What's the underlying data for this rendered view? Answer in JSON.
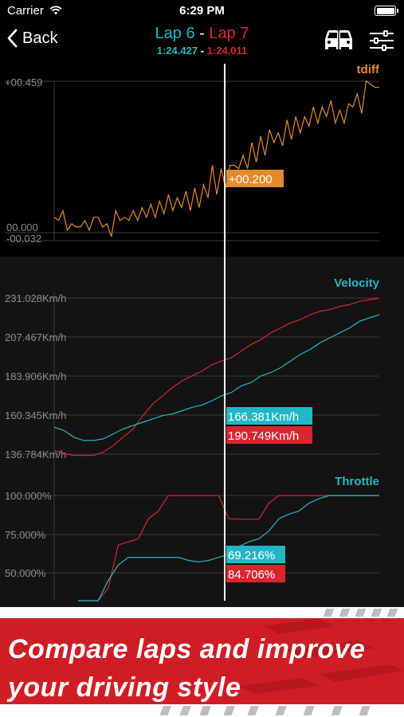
{
  "status": {
    "carrier": "Carrier",
    "time": "6:29 PM"
  },
  "nav": {
    "back_label": "Back",
    "lap_a": "Lap 6",
    "separator": "-",
    "lap_b": "Lap 7",
    "time_a": "1:24.427",
    "time_b": "1:24.011"
  },
  "colors": {
    "lap_a": "#22b7c7",
    "lap_b": "#d8262f",
    "tdiff": "#e58a2a",
    "grid": "#3a3a3a"
  },
  "tdiff_chart": {
    "title": "tdiff",
    "ticks": [
      "+00.459",
      "00.000",
      "-00.032"
    ],
    "ymin": -0.032,
    "ymax": 0.459,
    "cursor_label": "+00.200",
    "values": [
      0.04,
      0.03,
      0.06,
      0.0,
      0.02,
      0.01,
      0.01,
      0.03,
      0.0,
      0.04,
      0.04,
      0.01,
      0.02,
      -0.02,
      0.06,
      0.03,
      0.04,
      0.03,
      0.06,
      0.03,
      0.07,
      0.04,
      0.08,
      0.04,
      0.09,
      0.05,
      0.11,
      0.06,
      0.1,
      0.07,
      0.12,
      0.06,
      0.13,
      0.07,
      0.14,
      0.1,
      0.2,
      0.11,
      0.19,
      0.13,
      0.2,
      0.2,
      0.19,
      0.23,
      0.19,
      0.27,
      0.21,
      0.29,
      0.23,
      0.31,
      0.27,
      0.3,
      0.26,
      0.34,
      0.28,
      0.35,
      0.3,
      0.35,
      0.32,
      0.38,
      0.33,
      0.38,
      0.35,
      0.4,
      0.33,
      0.37,
      0.33,
      0.39,
      0.38,
      0.42,
      0.36,
      0.46,
      0.45,
      0.44,
      0.44
    ]
  },
  "velocity_chart": {
    "title": "Velocity",
    "ticks": [
      "231.028Km/h",
      "207.467Km/h",
      "183.906Km/h",
      "160.345Km/h",
      "136.784Km/h"
    ],
    "ymin": 136.784,
    "ymax": 231.028,
    "cursor_label_a": "166.381Km/h",
    "cursor_label_b": "190.749Km/h",
    "lap_a": [
      153,
      151,
      147,
      145,
      145,
      146,
      149,
      152,
      154,
      156,
      158,
      160,
      161,
      163,
      165,
      166.4,
      169,
      172,
      174,
      178,
      180,
      184,
      186,
      189,
      193,
      197,
      200,
      204,
      207,
      210,
      213,
      217,
      219,
      221
    ],
    "lap_b": [
      139,
      137,
      136,
      136,
      136,
      138,
      142,
      147,
      152,
      160,
      167,
      172,
      177,
      181,
      184,
      187,
      190.7,
      193,
      195,
      199,
      203,
      206,
      210,
      213,
      216,
      218,
      221,
      223,
      224,
      226,
      227,
      229,
      230,
      231
    ]
  },
  "throttle_chart": {
    "title": "Throttle",
    "ticks": [
      "100.000%",
      "75.000%",
      "50.000%"
    ],
    "ymin": 40,
    "ymax": 100,
    "cursor_label_a": "69.216%",
    "cursor_label_b": "84.706%",
    "lap_a": [
      0,
      10,
      25,
      45,
      55,
      60,
      60,
      60,
      60,
      60,
      60,
      58,
      57,
      58,
      60,
      62,
      67,
      70,
      72,
      77,
      85,
      88,
      90,
      95,
      98,
      100,
      100,
      100,
      100,
      100,
      100
    ],
    "lap_b": [
      0,
      0,
      20,
      40,
      68,
      70,
      72,
      85,
      90,
      100,
      100,
      100,
      100,
      100,
      100,
      85,
      84.7,
      84.7,
      84.7,
      95,
      100,
      100,
      100,
      100,
      100,
      100,
      100,
      100,
      100,
      100,
      100
    ]
  },
  "banner": {
    "line1": "Compare laps and improve",
    "line2": "your driving style"
  }
}
